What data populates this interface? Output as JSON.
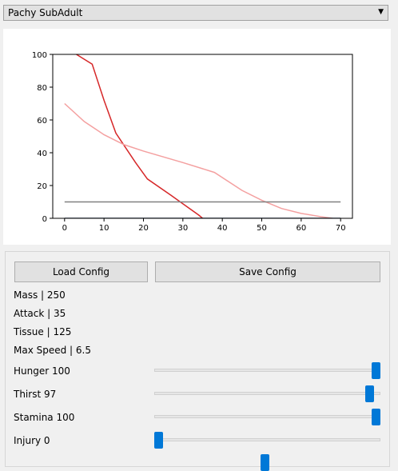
{
  "dropdown": {
    "selected": "Pachy SubAdult",
    "arrow_icon": "triangle-down-icon"
  },
  "buttons": {
    "load": "Load Config",
    "save": "Save Config"
  },
  "stats": [
    {
      "text": "Mass | 250"
    },
    {
      "text": "Attack | 35"
    },
    {
      "text": "Tissue | 125"
    },
    {
      "text": "Max Speed | 6.5"
    }
  ],
  "sliders": [
    {
      "label": "Hunger 100",
      "value": 100,
      "max": 100
    },
    {
      "label": "Thirst 97",
      "value": 97,
      "max": 100
    },
    {
      "label": "Stamina 100",
      "value": 100,
      "max": 100
    },
    {
      "label": "Injury 0",
      "value": 0,
      "max": 100
    },
    {
      "label": "",
      "value": 49,
      "max": 100
    }
  ],
  "colors": {
    "red": "#d62728",
    "pink": "#f4a0a0",
    "gray": "#808080",
    "navy": "#1f3b5a",
    "thumb": "#0078d7"
  },
  "chart_data": {
    "type": "line",
    "xlim": [
      -3,
      73
    ],
    "ylim": [
      0,
      100
    ],
    "xticks": [
      0,
      10,
      20,
      30,
      40,
      50,
      60,
      70
    ],
    "yticks": [
      0,
      20,
      40,
      60,
      80,
      100
    ],
    "series": [
      {
        "color": "#d62728",
        "x": [
          3,
          7,
          10,
          13,
          18,
          21,
          27,
          34,
          35
        ],
        "y": [
          100,
          94,
          72,
          52,
          34,
          24,
          14,
          2,
          0
        ]
      },
      {
        "color": "#f4a0a0",
        "x": [
          0,
          5,
          10,
          15,
          20,
          30,
          38,
          45,
          50,
          55,
          60,
          65,
          68
        ],
        "y": [
          70,
          59,
          51,
          45,
          41,
          34,
          28,
          17,
          11,
          6,
          3,
          1,
          0
        ]
      },
      {
        "color": "#808080",
        "x": [
          0,
          70
        ],
        "y": [
          10,
          10
        ]
      },
      {
        "color": "#1f3b5a",
        "x": [
          0,
          70
        ],
        "y": [
          0,
          0
        ]
      }
    ]
  }
}
